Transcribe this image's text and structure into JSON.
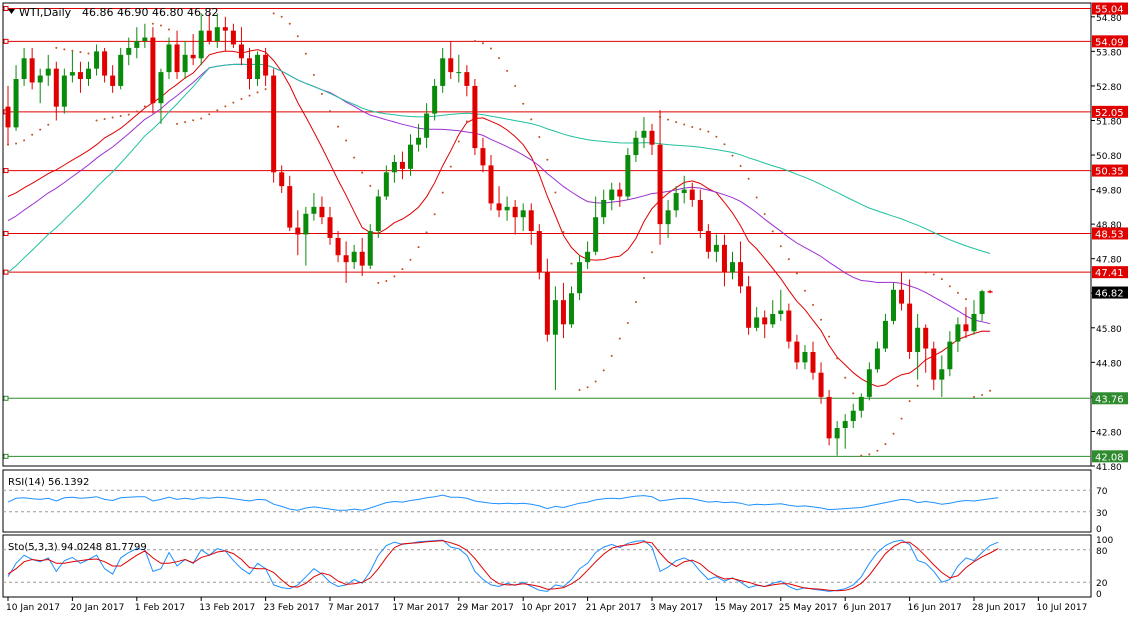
{
  "header": {
    "symbol_label": "WTI,Daily",
    "ohlc_label": "46.86 46.90 46.80 46.82"
  },
  "colors": {
    "bull_candle": "#0a8a0a",
    "bear_candle": "#e00000",
    "hline": "#e00000",
    "support_hline": "#2e8b2e",
    "ma_fast": "#e00000",
    "ma_mid": "#9b30d0",
    "ma_slow": "#20c0a0",
    "psar": "#c05020",
    "rsi_line": "#1e90ff",
    "stoch_k": "#1e90ff",
    "stoch_d": "#e00000"
  },
  "indicators": {
    "rsi_label": "RSI(14) 56.1392",
    "stoch_label": "Sto(5,3,3) 94.0248 81.7799"
  },
  "chart_data": {
    "type": "candlestick",
    "symbol": "WTI",
    "timeframe": "Daily",
    "last": {
      "open": 46.86,
      "high": 46.9,
      "low": 46.8,
      "close": 46.82
    },
    "price_axis": {
      "range": [
        41.8,
        55.2
      ],
      "ticks": [
        "54.80",
        "53.80",
        "52.80",
        "51.80",
        "50.80",
        "49.80",
        "48.80",
        "47.80",
        "46.80",
        "45.80",
        "44.80",
        "43.80",
        "42.80",
        "41.80"
      ],
      "tick_values": [
        54.8,
        53.8,
        52.8,
        51.8,
        50.8,
        49.8,
        48.8,
        47.8,
        46.8,
        45.8,
        44.8,
        43.8,
        42.8,
        41.8
      ]
    },
    "levels": [
      {
        "label": "55.04",
        "value": 55.04,
        "kind": "resistance"
      },
      {
        "label": "54.09",
        "value": 54.09,
        "kind": "resistance"
      },
      {
        "label": "52.05",
        "value": 52.05,
        "kind": "resistance"
      },
      {
        "label": "50.35",
        "value": 50.35,
        "kind": "resistance"
      },
      {
        "label": "48.53",
        "value": 48.53,
        "kind": "resistance"
      },
      {
        "label": "47.41",
        "value": 47.41,
        "kind": "resistance"
      },
      {
        "label": "43.76",
        "value": 43.76,
        "kind": "support"
      },
      {
        "label": "42.08",
        "value": 42.08,
        "kind": "support"
      }
    ],
    "current_price": {
      "label": "46.82",
      "value": 46.82
    },
    "x_axis": {
      "labels": [
        "10 Jan 2017",
        "20 Jan 2017",
        "1 Feb 2017",
        "13 Feb 2017",
        "23 Feb 2017",
        "7 Mar 2017",
        "17 Mar 2017",
        "29 Mar 2017",
        "10 Apr 2017",
        "21 Apr 2017",
        "3 May 2017",
        "15 May 2017",
        "25 May 2017",
        "6 Jun 2017",
        "16 Jun 2017",
        "28 Jun 2017",
        "10 Jul 2017"
      ],
      "label_bar_index": [
        0,
        8,
        16,
        24,
        32,
        40,
        48,
        56,
        64,
        72,
        80,
        88,
        96,
        104,
        112,
        120,
        128
      ]
    },
    "candles": [
      {
        "o": 52.2,
        "h": 52.8,
        "l": 51.1,
        "c": 51.6
      },
      {
        "o": 51.6,
        "h": 53.4,
        "l": 51.5,
        "c": 53.0
      },
      {
        "o": 53.0,
        "h": 53.9,
        "l": 52.8,
        "c": 53.6
      },
      {
        "o": 53.6,
        "h": 53.9,
        "l": 52.7,
        "c": 52.9
      },
      {
        "o": 52.9,
        "h": 53.3,
        "l": 52.3,
        "c": 53.1
      },
      {
        "o": 53.1,
        "h": 53.7,
        "l": 52.8,
        "c": 53.3
      },
      {
        "o": 53.3,
        "h": 53.5,
        "l": 51.8,
        "c": 52.2
      },
      {
        "o": 52.2,
        "h": 53.3,
        "l": 52.0,
        "c": 53.1
      },
      {
        "o": 53.1,
        "h": 53.8,
        "l": 52.9,
        "c": 53.2
      },
      {
        "o": 53.2,
        "h": 53.5,
        "l": 52.6,
        "c": 53.0
      },
      {
        "o": 53.0,
        "h": 53.5,
        "l": 52.8,
        "c": 53.3
      },
      {
        "o": 53.3,
        "h": 54.0,
        "l": 53.1,
        "c": 53.8
      },
      {
        "o": 53.8,
        "h": 53.9,
        "l": 52.9,
        "c": 53.1
      },
      {
        "o": 53.1,
        "h": 53.4,
        "l": 52.6,
        "c": 52.8
      },
      {
        "o": 52.8,
        "h": 53.9,
        "l": 52.7,
        "c": 53.7
      },
      {
        "o": 53.7,
        "h": 54.2,
        "l": 53.4,
        "c": 53.9
      },
      {
        "o": 53.9,
        "h": 54.5,
        "l": 53.6,
        "c": 54.1
      },
      {
        "o": 54.1,
        "h": 54.6,
        "l": 53.9,
        "c": 54.2
      },
      {
        "o": 54.2,
        "h": 54.5,
        "l": 52.0,
        "c": 52.3
      },
      {
        "o": 52.3,
        "h": 53.3,
        "l": 51.7,
        "c": 53.2
      },
      {
        "o": 53.2,
        "h": 54.2,
        "l": 53.0,
        "c": 54.0
      },
      {
        "o": 54.0,
        "h": 54.4,
        "l": 53.0,
        "c": 53.2
      },
      {
        "o": 53.2,
        "h": 54.1,
        "l": 53.0,
        "c": 53.7
      },
      {
        "o": 53.7,
        "h": 54.3,
        "l": 53.4,
        "c": 53.6
      },
      {
        "o": 53.6,
        "h": 54.9,
        "l": 53.4,
        "c": 54.4
      },
      {
        "o": 54.4,
        "h": 54.9,
        "l": 54.0,
        "c": 54.1
      },
      {
        "o": 54.1,
        "h": 54.9,
        "l": 53.9,
        "c": 54.5
      },
      {
        "o": 54.5,
        "h": 54.8,
        "l": 53.8,
        "c": 54.4
      },
      {
        "o": 54.4,
        "h": 54.6,
        "l": 53.9,
        "c": 54.0
      },
      {
        "o": 54.0,
        "h": 54.5,
        "l": 53.4,
        "c": 53.6
      },
      {
        "o": 53.6,
        "h": 53.9,
        "l": 52.7,
        "c": 53.0
      },
      {
        "o": 53.0,
        "h": 53.8,
        "l": 52.8,
        "c": 53.7
      },
      {
        "o": 53.7,
        "h": 53.9,
        "l": 52.8,
        "c": 53.1
      },
      {
        "o": 53.1,
        "h": 53.3,
        "l": 50.0,
        "c": 50.3
      },
      {
        "o": 50.3,
        "h": 50.5,
        "l": 49.7,
        "c": 49.9
      },
      {
        "o": 49.9,
        "h": 50.2,
        "l": 48.6,
        "c": 48.7
      },
      {
        "o": 48.7,
        "h": 49.2,
        "l": 47.9,
        "c": 48.5
      },
      {
        "o": 48.5,
        "h": 49.3,
        "l": 47.6,
        "c": 49.1
      },
      {
        "o": 49.1,
        "h": 49.7,
        "l": 48.9,
        "c": 49.3
      },
      {
        "o": 49.3,
        "h": 49.6,
        "l": 48.8,
        "c": 49.0
      },
      {
        "o": 49.0,
        "h": 49.3,
        "l": 48.2,
        "c": 48.4
      },
      {
        "o": 48.4,
        "h": 48.6,
        "l": 47.7,
        "c": 47.9
      },
      {
        "o": 47.9,
        "h": 48.3,
        "l": 47.1,
        "c": 47.7
      },
      {
        "o": 47.7,
        "h": 48.2,
        "l": 47.5,
        "c": 48.0
      },
      {
        "o": 48.0,
        "h": 48.4,
        "l": 47.3,
        "c": 47.6
      },
      {
        "o": 47.6,
        "h": 48.8,
        "l": 47.5,
        "c": 48.6
      },
      {
        "o": 48.6,
        "h": 49.8,
        "l": 48.4,
        "c": 49.6
      },
      {
        "o": 49.6,
        "h": 50.5,
        "l": 49.5,
        "c": 50.3
      },
      {
        "o": 50.3,
        "h": 50.8,
        "l": 50.0,
        "c": 50.6
      },
      {
        "o": 50.6,
        "h": 50.9,
        "l": 50.1,
        "c": 50.4
      },
      {
        "o": 50.4,
        "h": 51.4,
        "l": 50.2,
        "c": 51.1
      },
      {
        "o": 51.1,
        "h": 51.7,
        "l": 50.9,
        "c": 51.3
      },
      {
        "o": 51.3,
        "h": 52.3,
        "l": 51.0,
        "c": 52.0
      },
      {
        "o": 52.0,
        "h": 53.0,
        "l": 51.8,
        "c": 52.8
      },
      {
        "o": 52.8,
        "h": 53.9,
        "l": 52.6,
        "c": 53.6
      },
      {
        "o": 53.6,
        "h": 54.1,
        "l": 53.0,
        "c": 53.2
      },
      {
        "o": 53.2,
        "h": 53.7,
        "l": 52.9,
        "c": 53.2
      },
      {
        "o": 53.2,
        "h": 53.4,
        "l": 52.5,
        "c": 52.8
      },
      {
        "o": 52.8,
        "h": 53.0,
        "l": 50.8,
        "c": 51.0
      },
      {
        "o": 51.0,
        "h": 51.3,
        "l": 50.3,
        "c": 50.5
      },
      {
        "o": 50.5,
        "h": 50.8,
        "l": 49.2,
        "c": 49.4
      },
      {
        "o": 49.4,
        "h": 49.9,
        "l": 49.0,
        "c": 49.2
      },
      {
        "o": 49.2,
        "h": 49.6,
        "l": 48.9,
        "c": 49.3
      },
      {
        "o": 49.3,
        "h": 49.5,
        "l": 48.5,
        "c": 49.0
      },
      {
        "o": 49.0,
        "h": 49.4,
        "l": 48.6,
        "c": 49.2
      },
      {
        "o": 49.2,
        "h": 49.4,
        "l": 48.2,
        "c": 48.6
      },
      {
        "o": 48.6,
        "h": 48.8,
        "l": 47.2,
        "c": 47.4
      },
      {
        "o": 47.4,
        "h": 47.8,
        "l": 45.4,
        "c": 45.6
      },
      {
        "o": 45.6,
        "h": 47.0,
        "l": 44.0,
        "c": 46.6
      },
      {
        "o": 46.6,
        "h": 47.1,
        "l": 45.5,
        "c": 45.9
      },
      {
        "o": 45.9,
        "h": 47.0,
        "l": 45.8,
        "c": 46.8
      },
      {
        "o": 46.8,
        "h": 47.9,
        "l": 46.6,
        "c": 47.7
      },
      {
        "o": 47.7,
        "h": 48.3,
        "l": 47.5,
        "c": 48.0
      },
      {
        "o": 48.0,
        "h": 49.6,
        "l": 47.9,
        "c": 49.0
      },
      {
        "o": 49.0,
        "h": 49.8,
        "l": 48.8,
        "c": 49.5
      },
      {
        "o": 49.5,
        "h": 50.0,
        "l": 49.2,
        "c": 49.8
      },
      {
        "o": 49.8,
        "h": 50.0,
        "l": 49.3,
        "c": 49.6
      },
      {
        "o": 49.6,
        "h": 51.0,
        "l": 49.5,
        "c": 50.8
      },
      {
        "o": 50.8,
        "h": 51.5,
        "l": 50.6,
        "c": 51.3
      },
      {
        "o": 51.3,
        "h": 51.9,
        "l": 51.0,
        "c": 51.5
      },
      {
        "o": 51.5,
        "h": 51.7,
        "l": 50.8,
        "c": 51.1
      },
      {
        "o": 51.1,
        "h": 52.1,
        "l": 48.2,
        "c": 48.8
      },
      {
        "o": 48.8,
        "h": 49.5,
        "l": 48.4,
        "c": 49.2
      },
      {
        "o": 49.2,
        "h": 49.9,
        "l": 49.0,
        "c": 49.7
      },
      {
        "o": 49.7,
        "h": 50.2,
        "l": 49.4,
        "c": 49.8
      },
      {
        "o": 49.8,
        "h": 50.0,
        "l": 49.3,
        "c": 49.5
      },
      {
        "o": 49.5,
        "h": 49.8,
        "l": 48.4,
        "c": 48.6
      },
      {
        "o": 48.6,
        "h": 48.8,
        "l": 47.8,
        "c": 48.0
      },
      {
        "o": 48.0,
        "h": 48.5,
        "l": 47.7,
        "c": 48.2
      },
      {
        "o": 48.2,
        "h": 48.5,
        "l": 47.0,
        "c": 47.4
      },
      {
        "o": 47.4,
        "h": 48.0,
        "l": 47.2,
        "c": 47.7
      },
      {
        "o": 47.7,
        "h": 48.3,
        "l": 46.8,
        "c": 47.0
      },
      {
        "o": 47.0,
        "h": 47.3,
        "l": 45.6,
        "c": 45.8
      },
      {
        "o": 45.8,
        "h": 46.4,
        "l": 45.7,
        "c": 46.1
      },
      {
        "o": 46.1,
        "h": 46.3,
        "l": 45.5,
        "c": 45.9
      },
      {
        "o": 45.9,
        "h": 46.6,
        "l": 45.8,
        "c": 46.2
      },
      {
        "o": 46.2,
        "h": 46.9,
        "l": 46.0,
        "c": 46.3
      },
      {
        "o": 46.3,
        "h": 46.5,
        "l": 45.2,
        "c": 45.4
      },
      {
        "o": 45.4,
        "h": 45.6,
        "l": 44.6,
        "c": 44.8
      },
      {
        "o": 44.8,
        "h": 45.3,
        "l": 44.6,
        "c": 45.1
      },
      {
        "o": 45.1,
        "h": 45.4,
        "l": 44.3,
        "c": 44.5
      },
      {
        "o": 44.5,
        "h": 44.8,
        "l": 43.6,
        "c": 43.8
      },
      {
        "o": 43.8,
        "h": 44.0,
        "l": 42.4,
        "c": 42.6
      },
      {
        "o": 42.6,
        "h": 43.1,
        "l": 42.1,
        "c": 42.9
      },
      {
        "o": 42.9,
        "h": 43.3,
        "l": 42.3,
        "c": 43.1
      },
      {
        "o": 43.1,
        "h": 43.6,
        "l": 42.9,
        "c": 43.4
      },
      {
        "o": 43.4,
        "h": 43.9,
        "l": 43.2,
        "c": 43.8
      },
      {
        "o": 43.8,
        "h": 44.8,
        "l": 43.7,
        "c": 44.6
      },
      {
        "o": 44.6,
        "h": 45.4,
        "l": 44.5,
        "c": 45.2
      },
      {
        "o": 45.2,
        "h": 46.2,
        "l": 45.1,
        "c": 46.0
      },
      {
        "o": 46.0,
        "h": 47.1,
        "l": 45.9,
        "c": 46.9
      },
      {
        "o": 46.9,
        "h": 47.4,
        "l": 46.3,
        "c": 46.5
      },
      {
        "o": 46.5,
        "h": 47.2,
        "l": 44.9,
        "c": 45.1
      },
      {
        "o": 45.1,
        "h": 46.2,
        "l": 44.3,
        "c": 45.8
      },
      {
        "o": 45.8,
        "h": 45.9,
        "l": 44.5,
        "c": 45.2
      },
      {
        "o": 45.2,
        "h": 45.4,
        "l": 44.0,
        "c": 44.3
      },
      {
        "o": 44.3,
        "h": 45.0,
        "l": 43.8,
        "c": 44.6
      },
      {
        "o": 44.6,
        "h": 45.7,
        "l": 44.4,
        "c": 45.4
      },
      {
        "o": 45.4,
        "h": 46.1,
        "l": 45.1,
        "c": 45.9
      },
      {
        "o": 45.9,
        "h": 46.4,
        "l": 45.5,
        "c": 45.7
      },
      {
        "o": 45.7,
        "h": 46.6,
        "l": 45.6,
        "c": 46.2
      },
      {
        "o": 46.2,
        "h": 46.9,
        "l": 46.0,
        "c": 46.86
      },
      {
        "o": 46.86,
        "h": 46.9,
        "l": 46.8,
        "c": 46.82
      }
    ],
    "rsi": {
      "label": "RSI(14) 56.1392",
      "range": [
        0,
        100
      ],
      "ticks": [
        "70",
        "30",
        "0"
      ],
      "tick_values": [
        70,
        30,
        0
      ],
      "values": [
        48,
        55,
        56,
        54,
        53,
        55,
        50,
        56,
        57,
        55,
        56,
        58,
        53,
        51,
        56,
        57,
        58,
        58,
        50,
        53,
        57,
        53,
        55,
        53,
        56,
        55,
        57,
        56,
        54,
        52,
        50,
        53,
        52,
        44,
        40,
        35,
        33,
        37,
        39,
        37,
        35,
        33,
        33,
        35,
        33,
        37,
        42,
        47,
        49,
        48,
        51,
        53,
        56,
        58,
        61,
        57,
        57,
        55,
        50,
        48,
        46,
        45,
        46,
        45,
        46,
        44,
        41,
        36,
        40,
        38,
        42,
        46,
        48,
        52,
        54,
        55,
        54,
        57,
        59,
        60,
        58,
        50,
        52,
        54,
        55,
        54,
        51,
        48,
        49,
        47,
        48,
        46,
        42,
        44,
        43,
        44,
        45,
        42,
        40,
        41,
        39,
        37,
        34,
        35,
        36,
        37,
        38,
        41,
        44,
        47,
        50,
        53,
        52,
        47,
        49,
        47,
        44,
        46,
        49,
        51,
        50,
        52,
        54,
        56
      ]
    },
    "stochastic": {
      "label": "Sto(5,3,3) 94.0248 81.7799",
      "range": [
        0,
        100
      ],
      "ticks": [
        "100",
        "80",
        "20",
        "0"
      ],
      "tick_values": [
        100,
        80,
        20,
        0
      ],
      "k": [
        30,
        55,
        70,
        62,
        58,
        65,
        40,
        60,
        66,
        55,
        62,
        70,
        45,
        35,
        65,
        75,
        82,
        80,
        40,
        45,
        75,
        50,
        62,
        55,
        80,
        70,
        82,
        78,
        60,
        45,
        35,
        55,
        45,
        15,
        10,
        8,
        15,
        30,
        45,
        35,
        20,
        12,
        15,
        25,
        18,
        40,
        70,
        88,
        94,
        90,
        92,
        95,
        96,
        97,
        98,
        85,
        82,
        70,
        40,
        25,
        15,
        12,
        18,
        14,
        20,
        12,
        5,
        3,
        15,
        12,
        25,
        45,
        55,
        75,
        85,
        90,
        84,
        92,
        96,
        97,
        85,
        40,
        48,
        60,
        65,
        58,
        40,
        25,
        30,
        22,
        28,
        20,
        10,
        14,
        12,
        18,
        22,
        12,
        6,
        10,
        7,
        5,
        3,
        5,
        8,
        15,
        30,
        55,
        75,
        88,
        95,
        98,
        90,
        60,
        55,
        40,
        20,
        25,
        50,
        65,
        60,
        75,
        88,
        94
      ],
      "d": [
        35,
        45,
        58,
        62,
        60,
        62,
        55,
        55,
        58,
        60,
        62,
        63,
        58,
        50,
        50,
        60,
        70,
        78,
        65,
        55,
        55,
        58,
        62,
        56,
        66,
        70,
        76,
        78,
        73,
        62,
        47,
        45,
        45,
        38,
        24,
        12,
        11,
        18,
        30,
        37,
        33,
        22,
        16,
        17,
        20,
        28,
        45,
        66,
        84,
        91,
        92,
        93,
        95,
        96,
        97,
        93,
        88,
        79,
        64,
        45,
        27,
        17,
        15,
        15,
        17,
        15,
        12,
        7,
        8,
        10,
        17,
        27,
        42,
        58,
        72,
        83,
        87,
        89,
        91,
        95,
        93,
        74,
        58,
        49,
        58,
        61,
        54,
        41,
        32,
        26,
        27,
        23,
        20,
        15,
        12,
        15,
        17,
        17,
        13,
        9,
        8,
        7,
        5,
        4,
        5,
        9,
        18,
        33,
        53,
        73,
        86,
        94,
        94,
        83,
        68,
        52,
        38,
        28,
        32,
        47,
        58,
        67,
        74,
        82
      ]
    }
  }
}
